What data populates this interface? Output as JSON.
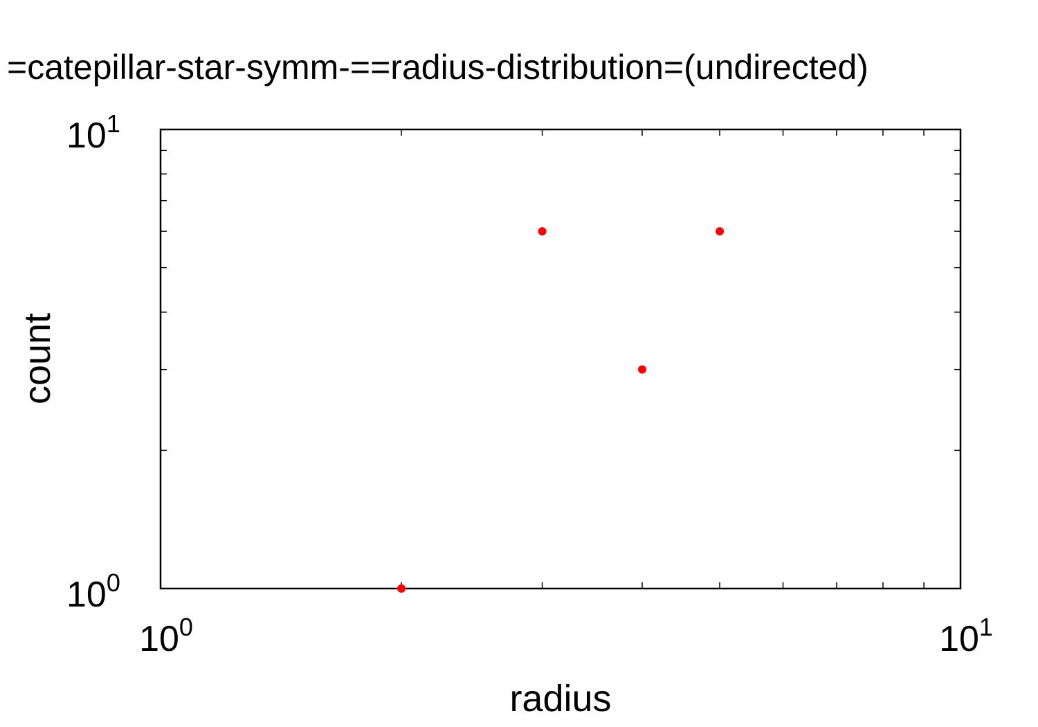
{
  "chart_data": {
    "type": "scatter",
    "title": "=catepillar-star-symm-==radius-distribution=(undirected)",
    "xlabel": "radius",
    "ylabel": "count",
    "xscale": "log",
    "yscale": "log",
    "xlim": [
      1,
      10
    ],
    "ylim": [
      1,
      10
    ],
    "x_ticks": [
      {
        "base": "10",
        "exp": "0",
        "value": 1
      },
      {
        "base": "10",
        "exp": "1",
        "value": 10
      }
    ],
    "y_ticks": [
      {
        "base": "10",
        "exp": "0",
        "value": 1
      },
      {
        "base": "10",
        "exp": "1",
        "value": 10
      }
    ],
    "grid": false,
    "legend": "none",
    "series": [
      {
        "color": "#ff0000",
        "points": [
          {
            "x": 2,
            "y": 1
          },
          {
            "x": 3,
            "y": 6
          },
          {
            "x": 4,
            "y": 3
          },
          {
            "x": 5,
            "y": 6
          }
        ]
      }
    ]
  }
}
